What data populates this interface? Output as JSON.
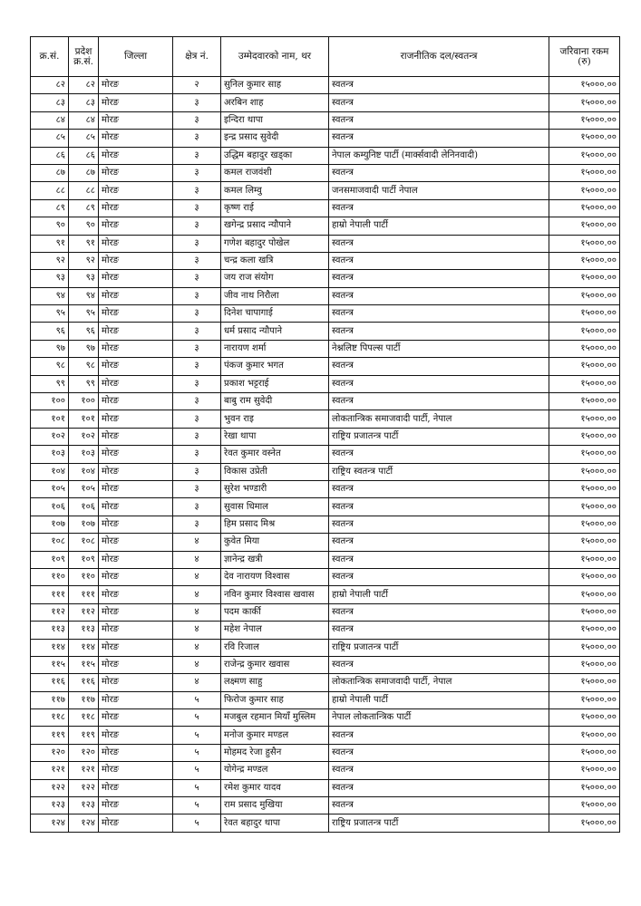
{
  "headers": [
    "क्र.सं.",
    "प्रदेश क्र.सं.",
    "जिल्ला",
    "क्षेत्र नं.",
    "उम्मेदवारको नाम, थर",
    "राजनीतिक दल/स्वतन्त्र",
    "जरिवाना रकम (रु)"
  ],
  "rows": [
    [
      "८२",
      "८२",
      "मोरङ",
      "२",
      "सुनिल कुमार साह",
      "स्वतन्त्र",
      "१५०००.००"
    ],
    [
      "८३",
      "८३",
      "मोरङ",
      "३",
      "अरबिन शाह",
      "स्वतन्त्र",
      "१५०००.००"
    ],
    [
      "८४",
      "८४",
      "मोरङ",
      "३",
      "इन्दिरा थापा",
      "स्वतन्त्र",
      "१५०००.००"
    ],
    [
      "८५",
      "८५",
      "मोरङ",
      "३",
      "इन्द्र प्रसाद सुवेदी",
      "स्वतन्त्र",
      "१५०००.००"
    ],
    [
      "८६",
      "८६",
      "मोरङ",
      "३",
      "उद्धिम बहादुर खड्का",
      "नेपाल कम्युनिष्ट पार्टी (मार्क्सवादी लेनिनवादी)",
      "१५०००.००"
    ],
    [
      "८७",
      "८७",
      "मोरङ",
      "३",
      "कमल राजवंशी",
      "स्वतन्त्र",
      "१५०००.००"
    ],
    [
      "८८",
      "८८",
      "मोरङ",
      "३",
      "कमल लिम्वु",
      "जनसमाजवादी पार्टी नेपाल",
      "१५०००.००"
    ],
    [
      "८९",
      "८९",
      "मोरङ",
      "३",
      "कृष्ण राई",
      "स्वतन्त्र",
      "१५०००.००"
    ],
    [
      "९०",
      "९०",
      "मोरङ",
      "३",
      "खगेन्द्र प्रसाद न्यौपाने",
      "हाम्रो नेपाली पार्टी",
      "१५०००.००"
    ],
    [
      "९१",
      "९१",
      "मोरङ",
      "३",
      "गणेश बहादुर पोखेल",
      "स्वतन्त्र",
      "१५०००.००"
    ],
    [
      "९२",
      "९२",
      "मोरङ",
      "३",
      "चन्द्र कला खत्रि",
      "स्वतन्त्र",
      "१५०००.००"
    ],
    [
      "९३",
      "९३",
      "मोरङ",
      "३",
      "जय राज संयोग",
      "स्वतन्त्र",
      "१५०००.००"
    ],
    [
      "९४",
      "९४",
      "मोरङ",
      "३",
      "जीव नाथ निरौला",
      "स्वतन्त्र",
      "१५०००.००"
    ],
    [
      "९५",
      "९५",
      "मोरङ",
      "३",
      "दिनेश चापागाई",
      "स्वतन्त्र",
      "१५०००.००"
    ],
    [
      "९६",
      "९६",
      "मोरङ",
      "३",
      "धर्म प्रसाद न्यौपाने",
      "स्वतन्त्र",
      "१५०००.००"
    ],
    [
      "९७",
      "९७",
      "मोरङ",
      "३",
      "नारायण शर्मा",
      "नेश्नलिष्ट पिपल्स पार्टी",
      "१५०००.००"
    ],
    [
      "९८",
      "९८",
      "मोरङ",
      "३",
      "पंकज कुमार भगत",
      "स्वतन्त्र",
      "१५०००.००"
    ],
    [
      "९९",
      "९९",
      "मोरङ",
      "३",
      "प्रकाश भट्टराई",
      "स्वतन्त्र",
      "१५०००.००"
    ],
    [
      "१००",
      "१००",
      "मोरङ",
      "३",
      "बाबु राम सुवेदी",
      "स्वतन्त्र",
      "१५०००.००"
    ],
    [
      "१०१",
      "१०१",
      "मोरङ",
      "३",
      "भुवन राइ",
      "लोकतान्त्रिक समाजवादी पार्टी, नेपाल",
      "१५०००.००"
    ],
    [
      "१०२",
      "१०२",
      "मोरङ",
      "३",
      "रेखा थापा",
      "राष्ट्रिय प्रजातन्त्र पार्टी",
      "१५०००.००"
    ],
    [
      "१०३",
      "१०३",
      "मोरङ",
      "३",
      "रेवत कुमार वस्नेत",
      "स्वतन्त्र",
      "१५०००.००"
    ],
    [
      "१०४",
      "१०४",
      "मोरङ",
      "३",
      "विकास उप्रेती",
      "राष्ट्रिय स्वतन्त्र पार्टी",
      "१५०००.००"
    ],
    [
      "१०५",
      "१०५",
      "मोरङ",
      "३",
      "सुरेश भण्डारी",
      "स्वतन्त्र",
      "१५०००.००"
    ],
    [
      "१०६",
      "१०६",
      "मोरङ",
      "३",
      "सुवास धिमाल",
      "स्वतन्त्र",
      "१५०००.००"
    ],
    [
      "१०७",
      "१०७",
      "मोरङ",
      "३",
      "हिम प्रसाद मिश्र",
      "स्वतन्त्र",
      "१५०००.००"
    ],
    [
      "१०८",
      "१०८",
      "मोरङ",
      "४",
      "कुवेत मिया",
      "स्वतन्त्र",
      "१५०००.००"
    ],
    [
      "१०९",
      "१०९",
      "मोरङ",
      "४",
      "ज्ञानेन्द्र खत्री",
      "स्वतन्त्र",
      "१५०००.००"
    ],
    [
      "११०",
      "११०",
      "मोरङ",
      "४",
      "देव नारायण विश्वास",
      "स्वतन्त्र",
      "१५०००.००"
    ],
    [
      "१११",
      "१११",
      "मोरङ",
      "४",
      "नविन कुमार विश्वास खवास",
      "हाम्रो नेपाली पार्टी",
      "१५०००.००"
    ],
    [
      "११२",
      "११२",
      "मोरङ",
      "४",
      "पदम कार्की",
      "स्वतन्त्र",
      "१५०००.००"
    ],
    [
      "११३",
      "११३",
      "मोरङ",
      "४",
      "महेश नेपाल",
      "स्वतन्त्र",
      "१५०००.००"
    ],
    [
      "११४",
      "११४",
      "मोरङ",
      "४",
      "रवि रिजाल",
      "राष्ट्रिय प्रजातन्त्र पार्टी",
      "१५०००.००"
    ],
    [
      "११५",
      "११५",
      "मोरङ",
      "४",
      "राजेन्द्र कुमार खवास",
      "स्वतन्त्र",
      "१५०००.००"
    ],
    [
      "११६",
      "११६",
      "मोरङ",
      "४",
      "लक्ष्मण साहु",
      "लोकतान्त्रिक समाजवादी पार्टी, नेपाल",
      "१५०००.००"
    ],
    [
      "११७",
      "११७",
      "मोरङ",
      "५",
      "फिरोज कुमार साह",
      "हाम्रो नेपाली पार्टी",
      "१५०००.००"
    ],
    [
      "११८",
      "११८",
      "मोरङ",
      "५",
      "मजबुल रहमान मियाँ मुस्लिम",
      "नेपाल लोकतान्त्रिक पार्टी",
      "१५०००.००"
    ],
    [
      "११९",
      "११९",
      "मोरङ",
      "५",
      "मनोज कुमार मण्डल",
      "स्वतन्त्र",
      "१५०००.००"
    ],
    [
      "१२०",
      "१२०",
      "मोरङ",
      "५",
      "मोहमद रेजा हुसैन",
      "स्वतन्त्र",
      "१५०००.००"
    ],
    [
      "१२१",
      "१२१",
      "मोरङ",
      "५",
      "योगेन्द्र मण्डल",
      "स्वतन्त्र",
      "१५०००.००"
    ],
    [
      "१२२",
      "१२२",
      "मोरङ",
      "५",
      "रमेश कुमार यादव",
      "स्वतन्त्र",
      "१५०००.००"
    ],
    [
      "१२३",
      "१२३",
      "मोरङ",
      "५",
      "राम प्रसाद मुखिया",
      "स्वतन्त्र",
      "१५०००.००"
    ],
    [
      "१२४",
      "१२४",
      "मोरङ",
      "५",
      "रेवत बहादुर थापा",
      "राष्ट्रिय प्रजातन्त्र पार्टी",
      "१५०००.००"
    ]
  ]
}
